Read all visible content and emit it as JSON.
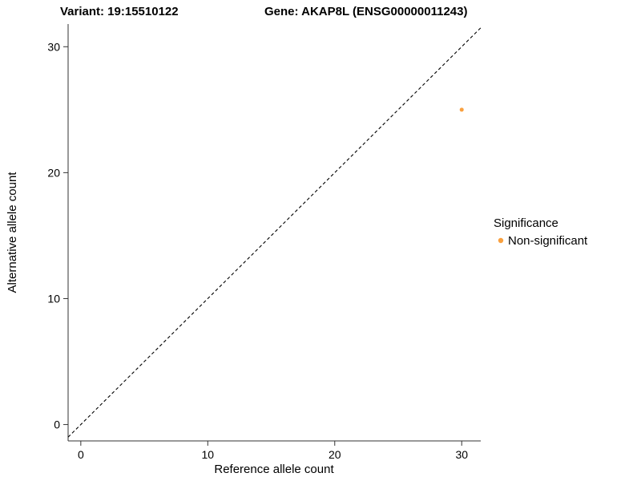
{
  "chart_data": {
    "type": "scatter",
    "title_left": "Variant: 19:15510122",
    "title_right": "Gene: AKAP8L (ENSG00000011243)",
    "xlabel": "Reference allele count",
    "ylabel": "Alternative allele count",
    "xticks": [
      0,
      10,
      20,
      30
    ],
    "yticks": [
      0,
      10,
      20,
      30
    ],
    "xlim": [
      -1.0,
      31.5
    ],
    "ylim": [
      -1.3,
      31.8
    ],
    "grid": false,
    "background": "#ffffff",
    "identity_line": {
      "slope": 1,
      "intercept": 0,
      "style": "dashed",
      "color": "#000000"
    },
    "points": [
      {
        "x": 30,
        "y": 25,
        "series": "Non-significant"
      }
    ],
    "point_radius": 2.5,
    "legend": {
      "title": "Significance",
      "position": "right",
      "items": [
        {
          "label": "Non-significant",
          "color": "#F9A03F"
        }
      ]
    }
  }
}
